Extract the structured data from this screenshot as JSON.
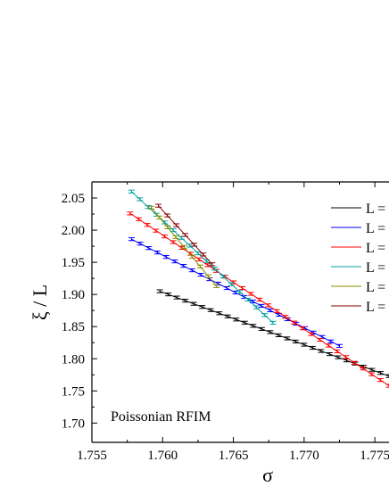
{
  "chart_data": {
    "type": "line",
    "xlabel": "σ",
    "ylabel": "ξ / L",
    "annotation": "Poissonian RFIM",
    "xlim": [
      1.755,
      1.776
    ],
    "ylim": [
      1.67,
      2.075
    ],
    "x_ticks": [
      1.755,
      1.76,
      1.765,
      1.77,
      1.775
    ],
    "x_tick_labels": [
      "1.755",
      "1.760",
      "1.765",
      "1.770",
      "1.775"
    ],
    "y_ticks": [
      1.7,
      1.75,
      1.8,
      1.85,
      1.9,
      1.95,
      2.0,
      2.05
    ],
    "y_tick_labels": [
      "1.70",
      "1.75",
      "1.80",
      "1.85",
      "1.90",
      "1.95",
      "2.00",
      "2.05"
    ],
    "legend_position": "top-right",
    "series": [
      {
        "name": "L =",
        "color": "#000000",
        "x": [
          1.7598,
          1.776
        ],
        "y": [
          1.905,
          1.773
        ]
      },
      {
        "name": "L =",
        "color": "#0000ff",
        "x": [
          1.7578,
          1.7725
        ],
        "y": [
          1.986,
          1.82
        ]
      },
      {
        "name": "L =",
        "color": "#ff0000",
        "x": [
          1.7577,
          1.776
        ],
        "y": [
          2.026,
          1.758
        ]
      },
      {
        "name": "L =",
        "color": "#00a0a0",
        "x": [
          1.7578,
          1.7678
        ],
        "y": [
          2.06,
          1.856
        ]
      },
      {
        "name": "L =",
        "color": "#8b8b00",
        "x": [
          1.7592,
          1.7638
        ],
        "y": [
          2.035,
          1.913
        ]
      },
      {
        "name": "L =",
        "color": "#8b0000",
        "x": [
          1.7597,
          1.7635
        ],
        "y": [
          2.038,
          1.947
        ]
      }
    ]
  }
}
